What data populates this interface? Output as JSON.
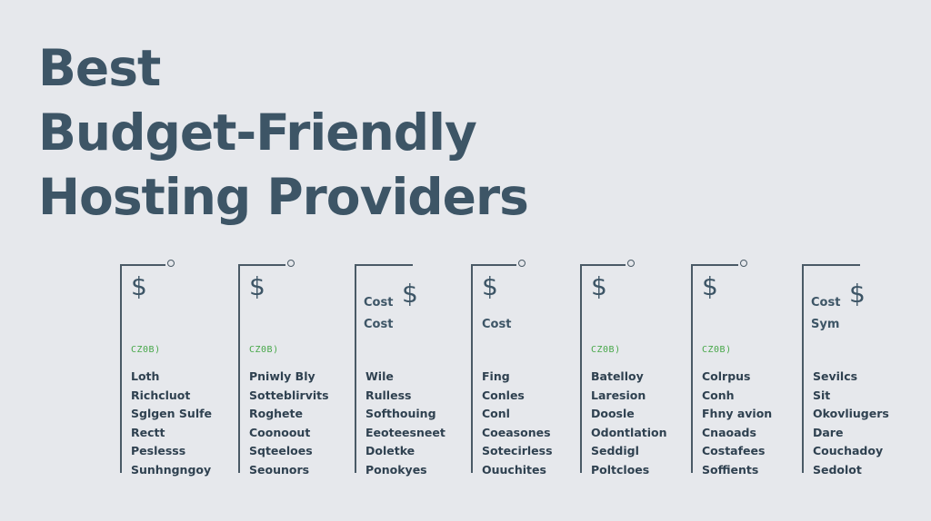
{
  "title": {
    "lines": [
      "Best",
      "Budget-Friendly",
      "Hosting Providers"
    ]
  },
  "columns": [
    {
      "symbol": "$",
      "badge": "CZ0B)",
      "items": [
        "Loth",
        "Richcluot",
        "Sglgen Sulfe",
        "Rectt",
        "Peslesss",
        "Sunhngngoy"
      ]
    },
    {
      "symbol": "$",
      "badge": "CZ0B)",
      "items": [
        "Pniwly Bly",
        "Sotteblirvits",
        "Roghete",
        "Coonoout",
        "Sqteeloes",
        "Seounors"
      ]
    },
    {
      "symbol": "$",
      "cost_label": "Cost",
      "cost_label_2": "Cost",
      "items": [
        "Wile",
        "Rulless",
        "Softhouing",
        "Eeoteesneet",
        "Doletke",
        "Ponokyes"
      ]
    },
    {
      "symbol": "$",
      "cost_label_2": "Cost",
      "items": [
        "Fing",
        "Conles",
        "Conl",
        "Coeasones",
        "Sotecirless",
        "Ouuchites"
      ]
    },
    {
      "symbol": "$",
      "badge": "CZ0B)",
      "items": [
        "Batelloy",
        "Laresion",
        "Doosle",
        "Odontlation",
        "Seddigl",
        "Poltcloes"
      ]
    },
    {
      "symbol": "$",
      "badge": "CZ0B)",
      "items": [
        "Colrpus",
        "Conh",
        "Fhny avion",
        "Cnaoads",
        "Costafees",
        "Soffients"
      ]
    },
    {
      "symbol": "$",
      "cost_label": "Cost",
      "cost_label_2": "Sym",
      "items": [
        "Sevilcs",
        "Sit",
        "Okovliugers",
        "Dare",
        "Couchadoy",
        "Sedolot"
      ]
    }
  ],
  "colors": {
    "background": "#e6e8ec",
    "title": "#3d5566",
    "badge": "#48a84a",
    "line": "#4a5a66"
  }
}
